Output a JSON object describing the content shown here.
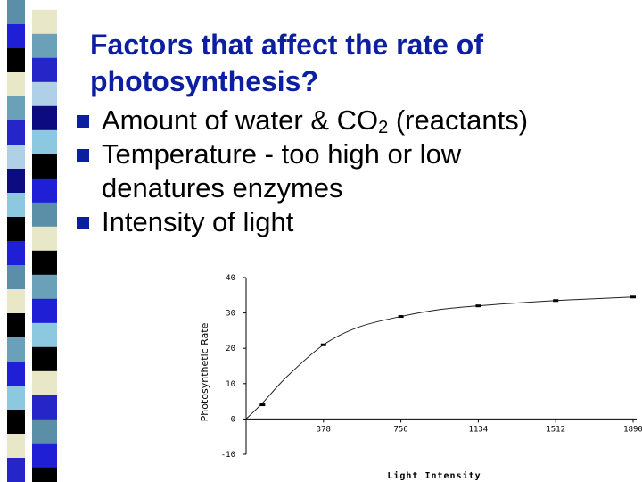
{
  "slide": {
    "title_line1": "Factors that affect the rate of",
    "title_line2": "photosynthesis?",
    "title_color": "#0b1fa0",
    "bullet_color": "#0b1fa0",
    "bullets": [
      {
        "pre": "Amount of water & CO",
        "sub": "2",
        "post": " (reactants)"
      },
      {
        "line1": "Temperature - too high or low",
        "line2": "denatures enzymes"
      },
      {
        "text": "Intensity of light"
      }
    ]
  },
  "decoration": {
    "stripe_colors": [
      "#5b8fa8",
      "#1f1fd6",
      "#000000",
      "#e8e8c8",
      "#6aa0b8",
      "#2525c8",
      "#b0d0e8",
      "#0c0c80",
      "#8cc8e0",
      "#000000",
      "#1f1fd6",
      "#5b8fa8",
      "#e8e8c8",
      "#000000",
      "#6aa0b8",
      "#1f1fd6",
      "#8cc8e0",
      "#000000",
      "#e8e8c8",
      "#2525c8"
    ]
  },
  "chart_data": {
    "type": "line",
    "xlabel": "Light Intensity",
    "ylabel": "Photosynthetic Rate",
    "ylim": [
      -10,
      40
    ],
    "xlim": [
      0,
      1890
    ],
    "x_ticks": [
      378,
      756,
      1134,
      1512,
      1890
    ],
    "y_ticks": [
      -10,
      0,
      10,
      20,
      30,
      40
    ],
    "points": [
      {
        "x": 80,
        "y": 4
      },
      {
        "x": 378,
        "y": 21
      },
      {
        "x": 756,
        "y": 29
      },
      {
        "x": 1134,
        "y": 32
      },
      {
        "x": 1512,
        "y": 33.5
      },
      {
        "x": 1890,
        "y": 34.5
      }
    ],
    "curve": [
      [
        0,
        0
      ],
      [
        80,
        4.5
      ],
      [
        200,
        12
      ],
      [
        378,
        21
      ],
      [
        550,
        26
      ],
      [
        756,
        29
      ],
      [
        950,
        31
      ],
      [
        1134,
        32
      ],
      [
        1320,
        32.8
      ],
      [
        1512,
        33.5
      ],
      [
        1700,
        34
      ],
      [
        1890,
        34.5
      ]
    ],
    "grid": false,
    "legend": "none"
  }
}
